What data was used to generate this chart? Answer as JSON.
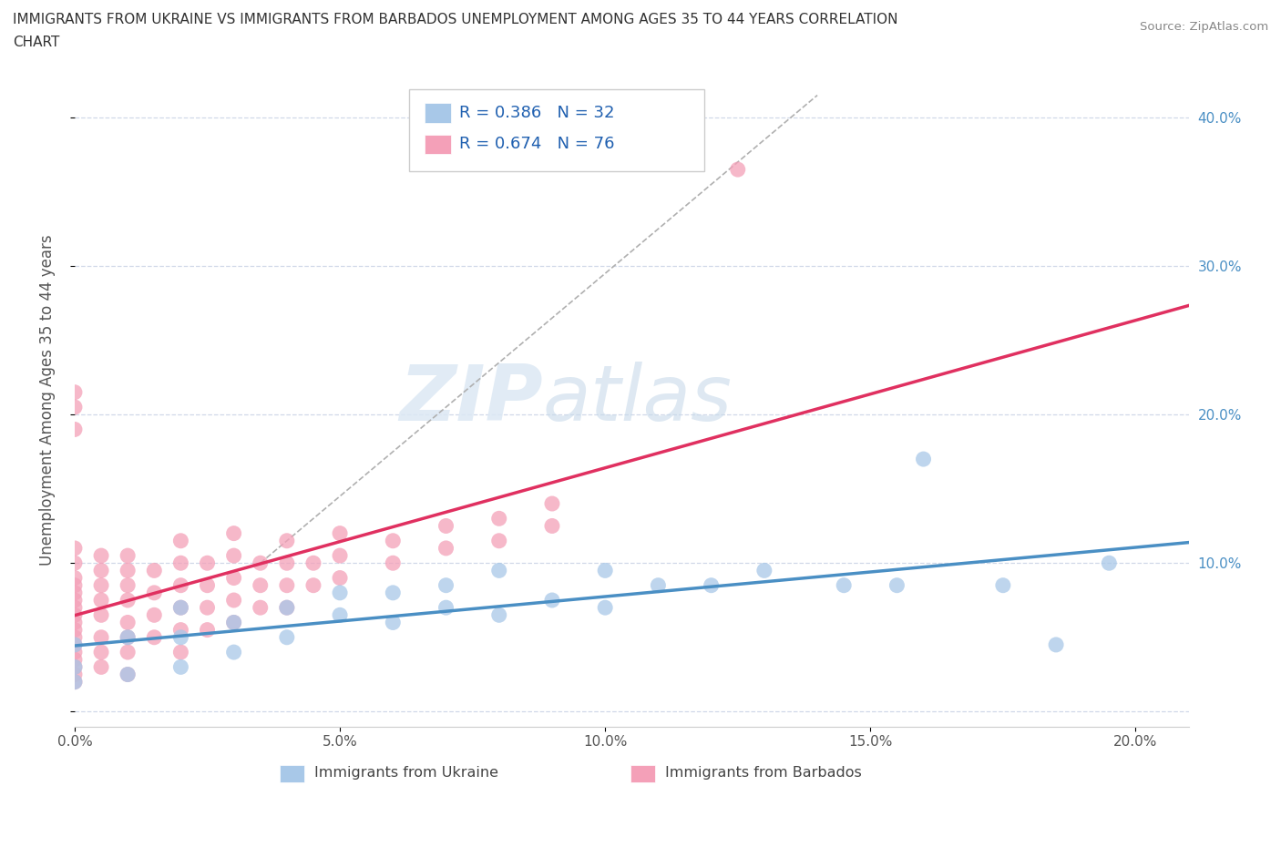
{
  "title": "IMMIGRANTS FROM UKRAINE VS IMMIGRANTS FROM BARBADOS UNEMPLOYMENT AMONG AGES 35 TO 44 YEARS CORRELATION\nCHART",
  "source": "Source: ZipAtlas.com",
  "ylabel": "Unemployment Among Ages 35 to 44 years",
  "xlim": [
    0.0,
    0.21
  ],
  "ylim": [
    -0.01,
    0.43
  ],
  "x_ticks": [
    0.0,
    0.05,
    0.1,
    0.15,
    0.2
  ],
  "x_tick_labels": [
    "0.0%",
    "5.0%",
    "10.0%",
    "15.0%",
    "20.0%"
  ],
  "y_ticks": [
    0.0,
    0.1,
    0.2,
    0.3,
    0.4
  ],
  "right_tick_labels": [
    "",
    "10.0%",
    "20.0%",
    "30.0%",
    "40.0%"
  ],
  "ukraine_color": "#a8c8e8",
  "barbados_color": "#f4a0b8",
  "ukraine_line_color": "#4a8fc4",
  "barbados_line_color": "#e03060",
  "right_axis_color": "#4a8fc4",
  "R_ukraine": 0.386,
  "N_ukraine": 32,
  "R_barbados": 0.674,
  "N_barbados": 76,
  "legend_ukraine": "Immigrants from Ukraine",
  "legend_barbados": "Immigrants from Barbados",
  "ukraine_x": [
    0.0,
    0.0,
    0.0,
    0.01,
    0.01,
    0.02,
    0.02,
    0.02,
    0.03,
    0.03,
    0.04,
    0.04,
    0.05,
    0.05,
    0.06,
    0.06,
    0.07,
    0.07,
    0.08,
    0.08,
    0.09,
    0.1,
    0.1,
    0.11,
    0.12,
    0.13,
    0.145,
    0.155,
    0.16,
    0.175,
    0.185,
    0.195
  ],
  "ukraine_y": [
    0.02,
    0.03,
    0.045,
    0.025,
    0.05,
    0.03,
    0.05,
    0.07,
    0.04,
    0.06,
    0.05,
    0.07,
    0.065,
    0.08,
    0.06,
    0.08,
    0.07,
    0.085,
    0.065,
    0.095,
    0.075,
    0.07,
    0.095,
    0.085,
    0.085,
    0.095,
    0.085,
    0.085,
    0.17,
    0.085,
    0.045,
    0.1
  ],
  "barbados_x": [
    0.0,
    0.0,
    0.0,
    0.0,
    0.0,
    0.0,
    0.0,
    0.0,
    0.0,
    0.0,
    0.0,
    0.0,
    0.0,
    0.0,
    0.0,
    0.0,
    0.0,
    0.0,
    0.0,
    0.0,
    0.005,
    0.005,
    0.005,
    0.005,
    0.005,
    0.005,
    0.005,
    0.005,
    0.01,
    0.01,
    0.01,
    0.01,
    0.01,
    0.01,
    0.01,
    0.01,
    0.015,
    0.015,
    0.015,
    0.015,
    0.02,
    0.02,
    0.02,
    0.02,
    0.02,
    0.02,
    0.025,
    0.025,
    0.025,
    0.025,
    0.03,
    0.03,
    0.03,
    0.03,
    0.03,
    0.035,
    0.035,
    0.035,
    0.04,
    0.04,
    0.04,
    0.04,
    0.045,
    0.045,
    0.05,
    0.05,
    0.05,
    0.06,
    0.06,
    0.07,
    0.07,
    0.08,
    0.08,
    0.09,
    0.09
  ],
  "barbados_y": [
    0.02,
    0.025,
    0.03,
    0.035,
    0.04,
    0.045,
    0.05,
    0.055,
    0.06,
    0.065,
    0.07,
    0.075,
    0.08,
    0.085,
    0.09,
    0.1,
    0.11,
    0.19,
    0.205,
    0.215,
    0.03,
    0.04,
    0.05,
    0.065,
    0.075,
    0.085,
    0.095,
    0.105,
    0.025,
    0.04,
    0.05,
    0.06,
    0.075,
    0.085,
    0.095,
    0.105,
    0.05,
    0.065,
    0.08,
    0.095,
    0.04,
    0.055,
    0.07,
    0.085,
    0.1,
    0.115,
    0.055,
    0.07,
    0.085,
    0.1,
    0.06,
    0.075,
    0.09,
    0.105,
    0.12,
    0.07,
    0.085,
    0.1,
    0.07,
    0.085,
    0.1,
    0.115,
    0.085,
    0.1,
    0.09,
    0.105,
    0.12,
    0.1,
    0.115,
    0.11,
    0.125,
    0.115,
    0.13,
    0.125,
    0.14
  ],
  "barbados_outlier_x": [
    0.125
  ],
  "barbados_outlier_y": [
    0.365
  ],
  "watermark_zip": "ZIP",
  "watermark_atlas": "atlas",
  "background_color": "#ffffff",
  "grid_color": "#d0d8e8"
}
